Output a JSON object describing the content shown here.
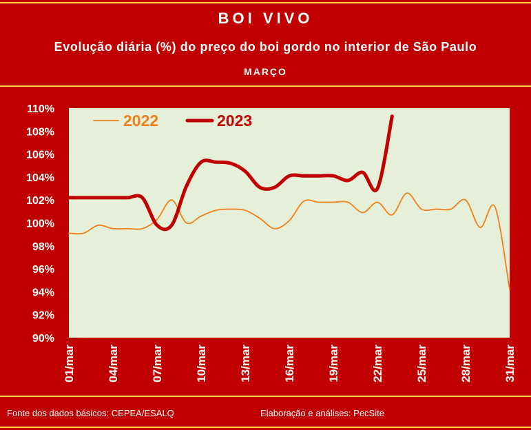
{
  "header": {
    "title": "BOI VIVO",
    "subtitle": "Evolução diária (%) do preço do boi gordo no interior de São Paulo",
    "month": "MARÇO"
  },
  "footer": {
    "source": "Fonte dos dados básicos: CEPEA/ESALQ",
    "credit": "Elaboração e análises: PecSite"
  },
  "colors": {
    "frame": "#c00000",
    "plot_bg": "#e6f0d9",
    "stripe": "#ffd24a",
    "series_2022": "#f07f1a",
    "series_2023": "#c00000"
  },
  "chart_data": {
    "type": "line",
    "x_tick_labels": [
      "01/mar",
      "04/mar",
      "07/mar",
      "10/mar",
      "13/mar",
      "16/mar",
      "19/mar",
      "22/mar",
      "25/mar",
      "28/mar",
      "31/mar"
    ],
    "y_tick_labels": [
      "90%",
      "92%",
      "94%",
      "96%",
      "98%",
      "100%",
      "102%",
      "104%",
      "106%",
      "108%",
      "110%"
    ],
    "ylim": [
      90,
      110
    ],
    "xlim": [
      1,
      31
    ],
    "legend_position": "top-left",
    "grid": false,
    "series": [
      {
        "name": "2022",
        "color": "#f07f1a",
        "points": [
          [
            1,
            99.1
          ],
          [
            2,
            99.1
          ],
          [
            3,
            99.8
          ],
          [
            4,
            99.5
          ],
          [
            5,
            99.5
          ],
          [
            6,
            99.5
          ],
          [
            7,
            100.3
          ],
          [
            8,
            102.0
          ],
          [
            9,
            100.0
          ],
          [
            10,
            100.6
          ],
          [
            11,
            101.1
          ],
          [
            12,
            101.2
          ],
          [
            13,
            101.1
          ],
          [
            14,
            100.4
          ],
          [
            15,
            99.5
          ],
          [
            16,
            100.2
          ],
          [
            17,
            101.9
          ],
          [
            18,
            101.8
          ],
          [
            19,
            101.8
          ],
          [
            20,
            101.8
          ],
          [
            21,
            100.9
          ],
          [
            22,
            101.8
          ],
          [
            23,
            100.7
          ],
          [
            24,
            102.6
          ],
          [
            25,
            101.2
          ],
          [
            26,
            101.2
          ],
          [
            27,
            101.2
          ],
          [
            28,
            102.0
          ],
          [
            29,
            99.6
          ],
          [
            30,
            101.4
          ],
          [
            31,
            94.2
          ]
        ]
      },
      {
        "name": "2023",
        "color": "#c00000",
        "points": [
          [
            1,
            102.2
          ],
          [
            2,
            102.2
          ],
          [
            3,
            102.2
          ],
          [
            4,
            102.2
          ],
          [
            5,
            102.2
          ],
          [
            6,
            102.2
          ],
          [
            7,
            99.8
          ],
          [
            8,
            99.8
          ],
          [
            9,
            103.2
          ],
          [
            10,
            105.3
          ],
          [
            11,
            105.3
          ],
          [
            12,
            105.2
          ],
          [
            13,
            104.5
          ],
          [
            14,
            103.1
          ],
          [
            15,
            103.1
          ],
          [
            16,
            104.1
          ],
          [
            17,
            104.1
          ],
          [
            18,
            104.1
          ],
          [
            19,
            104.1
          ],
          [
            20,
            103.7
          ],
          [
            21,
            104.4
          ],
          [
            22,
            103.0
          ],
          [
            23,
            109.3
          ]
        ]
      }
    ]
  }
}
